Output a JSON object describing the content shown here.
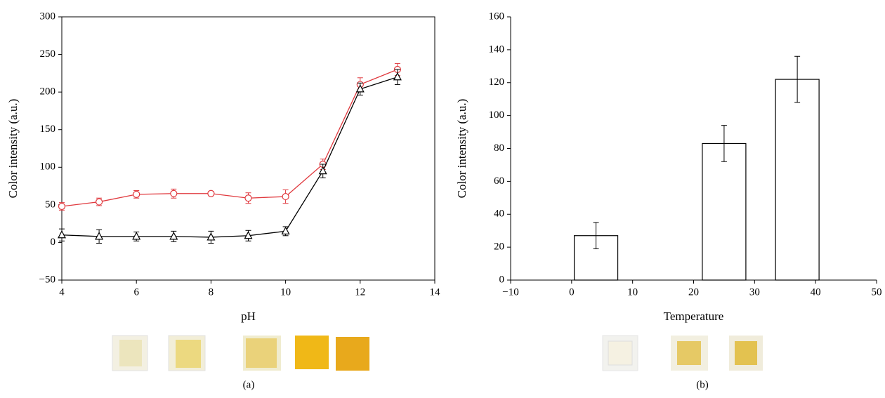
{
  "chart_data": [
    {
      "type": "line",
      "xlabel": "pH",
      "ylabel": "Color intensity (a.u.)",
      "caption": "(a)",
      "x": [
        4,
        5,
        6,
        7,
        8,
        9,
        10,
        11,
        12,
        13
      ],
      "series": [
        {
          "color": "#e0393e",
          "marker": "circle",
          "values": [
            48,
            54,
            64,
            65,
            65,
            59,
            61,
            104,
            210,
            230
          ],
          "errors": [
            5,
            5,
            5,
            6,
            3,
            7,
            9,
            7,
            9,
            8
          ]
        },
        {
          "color": "#000000",
          "marker": "triangle",
          "values": [
            10,
            8,
            8,
            8,
            7,
            9,
            15,
            95,
            204,
            220
          ],
          "errors": [
            8,
            9,
            6,
            7,
            8,
            7,
            6,
            9,
            8,
            10
          ]
        }
      ],
      "xlim": [
        4,
        14
      ],
      "xticks": [
        4,
        6,
        8,
        10,
        12,
        14
      ],
      "ylim": [
        -50,
        300
      ],
      "yticks": [
        {
          "value": -50,
          "label": "−50"
        },
        0,
        50,
        100,
        150,
        200,
        250,
        300
      ]
    },
    {
      "type": "bar",
      "xlabel": "Temperature",
      "ylabel": "Color intensity (a.u.)",
      "caption": "(b)",
      "x": [
        4,
        25,
        37
      ],
      "color": "#ffffff",
      "values": [
        27,
        83,
        122
      ],
      "errors": [
        8,
        11,
        14
      ],
      "xlim": [
        -10,
        50
      ],
      "xticks": [
        {
          "value": -10,
          "label": "−10"
        },
        0,
        10,
        20,
        30,
        40,
        50
      ],
      "ylim": [
        0,
        160
      ],
      "yticks": [
        0,
        20,
        40,
        60,
        80,
        100,
        120,
        140,
        160
      ]
    }
  ]
}
